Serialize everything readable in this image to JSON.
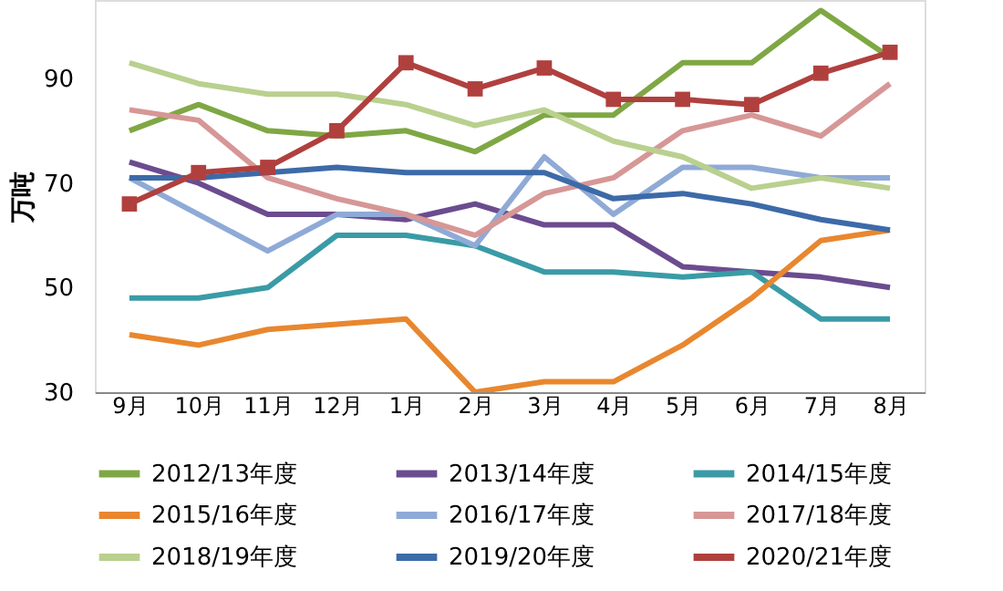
{
  "chart_data": {
    "type": "line",
    "ylabel": "万吨",
    "categories": [
      "9月",
      "10月",
      "11月",
      "12月",
      "1月",
      "2月",
      "3月",
      "4月",
      "5月",
      "6月",
      "7月",
      "8月"
    ],
    "ylim": [
      30,
      105
    ],
    "yticks": [
      30,
      50,
      70,
      90
    ],
    "grid": false,
    "legend": "bottom",
    "marker": "none",
    "series": [
      {
        "name": "2012/13年度",
        "color": "#7fa744",
        "values": [
          80,
          85,
          80,
          79,
          80,
          76,
          83,
          83,
          93,
          93,
          103,
          94
        ]
      },
      {
        "name": "2013/14年度",
        "color": "#6b4c8f",
        "values": [
          74,
          70,
          64,
          64,
          63,
          66,
          62,
          62,
          54,
          53,
          52,
          50
        ]
      },
      {
        "name": "2014/15年度",
        "color": "#3a9ba6",
        "values": [
          48,
          48,
          50,
          60,
          60,
          58,
          53,
          53,
          52,
          53,
          44,
          44
        ]
      },
      {
        "name": "2015/16年度",
        "color": "#e8872f",
        "values": [
          41,
          39,
          42,
          43,
          44,
          30,
          32,
          32,
          39,
          48,
          59,
          61
        ]
      },
      {
        "name": "2016/17年度",
        "color": "#8faad6",
        "values": [
          71,
          64,
          57,
          64,
          64,
          58,
          75,
          64,
          73,
          73,
          71,
          71
        ]
      },
      {
        "name": "2017/18年度",
        "color": "#d69796",
        "values": [
          84,
          82,
          71,
          67,
          64,
          60,
          68,
          71,
          80,
          83,
          79,
          89
        ]
      },
      {
        "name": "2018/19年度",
        "color": "#b9d08f",
        "values": [
          93,
          89,
          87,
          87,
          85,
          81,
          84,
          78,
          75,
          69,
          71,
          69
        ]
      },
      {
        "name": "2019/20年度",
        "color": "#3d6aa8",
        "values": [
          71,
          71,
          72,
          73,
          72,
          72,
          72,
          67,
          68,
          66,
          63,
          61
        ]
      },
      {
        "name": "2020/21年度",
        "color": "#b0403e",
        "marker": "square",
        "values": [
          66,
          72,
          73,
          80,
          93,
          88,
          92,
          86,
          86,
          85,
          91,
          95
        ]
      }
    ]
  }
}
